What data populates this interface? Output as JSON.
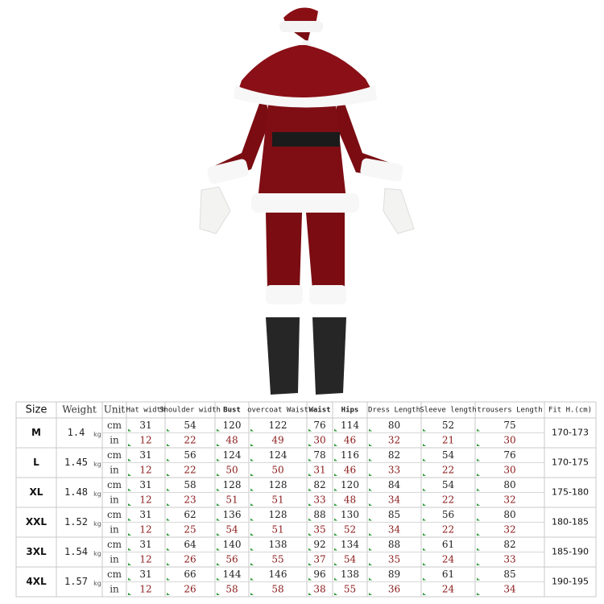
{
  "table": {
    "header": [
      "Size",
      "Weight",
      "Unit",
      "Hat width",
      "Shoulder width",
      "Bust",
      "overcoat Waist",
      "Waist",
      "Hips",
      "Dress Length",
      "Sleeve length",
      "trousers Length",
      "Fit H.(cm)"
    ],
    "rows": [
      {
        "size": "M",
        "weight": "1.4",
        "weight_unit": "kg",
        "fit": "170-173",
        "lines": [
          {
            "unit": "cm",
            "values": [
              31,
              54,
              120,
              122,
              76,
              114,
              80,
              52,
              75
            ]
          },
          {
            "unit": "in",
            "values": [
              12,
              22,
              48,
              49,
              30,
              46,
              32,
              21,
              30
            ]
          }
        ]
      },
      {
        "size": "L",
        "weight": "1.45",
        "weight_unit": "kg",
        "fit": "170-175",
        "lines": [
          {
            "unit": "cm",
            "values": [
              31,
              56,
              124,
              124,
              78,
              116,
              82,
              54,
              76
            ]
          },
          {
            "unit": "in",
            "values": [
              12,
              22,
              50,
              50,
              31,
              46,
              33,
              22,
              30
            ]
          }
        ]
      },
      {
        "size": "XL",
        "weight": "1.48",
        "weight_unit": "kg",
        "fit": "175-180",
        "lines": [
          {
            "unit": "cm",
            "values": [
              31,
              58,
              128,
              128,
              82,
              120,
              84,
              54,
              80
            ]
          },
          {
            "unit": "in",
            "values": [
              12,
              23,
              51,
              51,
              33,
              48,
              34,
              22,
              32
            ]
          }
        ]
      },
      {
        "size": "XXL",
        "weight": "1.52",
        "weight_unit": "kg",
        "fit": "180-185",
        "lines": [
          {
            "unit": "cm",
            "values": [
              31,
              62,
              136,
              128,
              88,
              130,
              85,
              56,
              80
            ]
          },
          {
            "unit": "in",
            "values": [
              12,
              25,
              54,
              51,
              35,
              52,
              34,
              22,
              32
            ]
          }
        ]
      },
      {
        "size": "3XL",
        "weight": "1.54",
        "weight_unit": "kg",
        "fit": "185-190",
        "lines": [
          {
            "unit": "cm",
            "values": [
              31,
              64,
              140,
              138,
              92,
              134,
              88,
              61,
              82
            ]
          },
          {
            "unit": "in",
            "values": [
              12,
              26,
              56,
              55,
              37,
              54,
              35,
              24,
              33
            ]
          }
        ]
      },
      {
        "size": "4XL",
        "weight": "1.57",
        "weight_unit": "kg",
        "fit": "190-195",
        "lines": [
          {
            "unit": "cm",
            "values": [
              31,
              66,
              144,
              146,
              96,
              138,
              89,
              61,
              85
            ]
          },
          {
            "unit": "in",
            "values": [
              12,
              26,
              58,
              58,
              38,
              55,
              36,
              24,
              34
            ]
          }
        ]
      }
    ]
  }
}
